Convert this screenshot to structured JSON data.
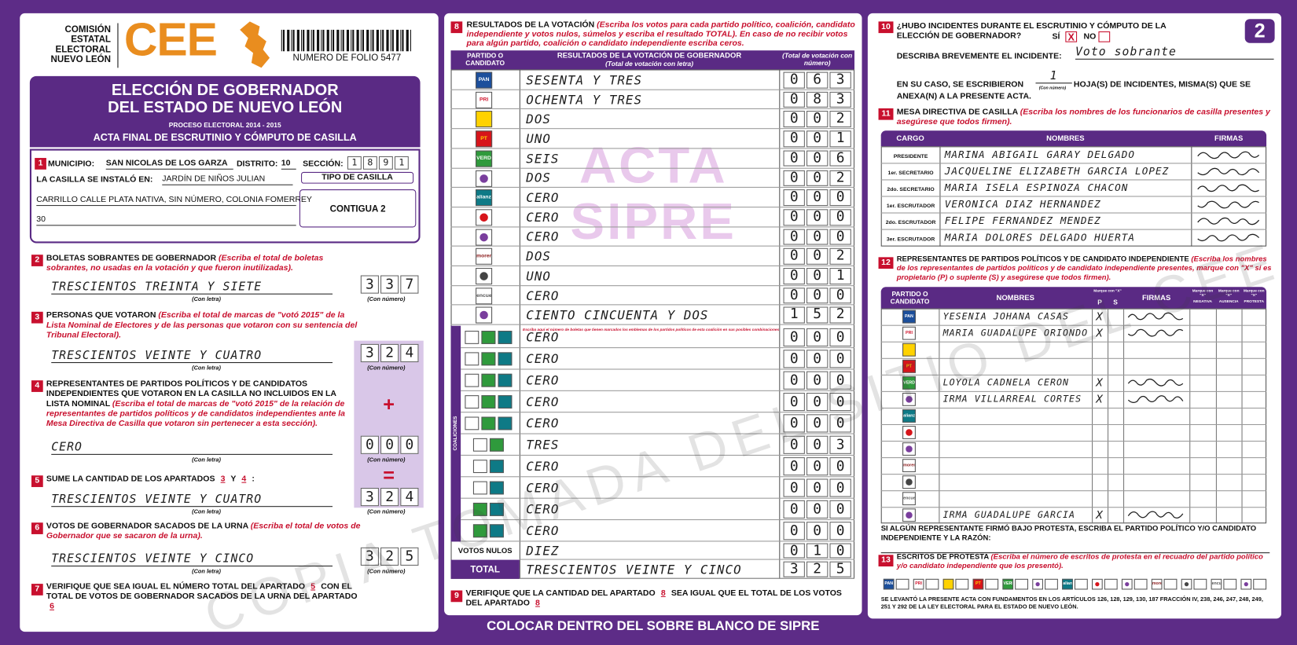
{
  "header": {
    "org_lines": [
      "COMISIÓN",
      "ESTATAL",
      "ELECTORAL",
      "NUEVO LEÓN"
    ],
    "logo": "CEE",
    "folio": "NUMERO DE FOLIO 5477",
    "sheet": "2"
  },
  "title": {
    "lines": [
      "ELECCIÓN DE GOBERNADOR",
      "DEL ESTADO DE NUEVO LEÓN"
    ],
    "process": "PROCESO ELECTORAL 2014 - 2015",
    "act": "ACTA FINAL DE ESCRUTINIO Y CÓMPUTO DE CASILLA"
  },
  "parties": [
    "PAN",
    "PRI",
    null,
    "PT",
    "VERDE",
    null,
    "alianza",
    null,
    null,
    "morena",
    null,
    "encuentro",
    null
  ],
  "captions": {
    "letter": "(Con letra)",
    "number": "(Con número)"
  },
  "s1": {
    "number": "1",
    "municipio_label": "MUNICIPIO:",
    "municipio": "SAN NICOLAS DE LOS GARZA",
    "distrito_label": "DISTRITO:",
    "distrito": "10",
    "seccion_label": "SECCIÓN:",
    "seccion": [
      "1",
      "8",
      "9",
      "1"
    ],
    "location_label": "LA CASILLA SE INSTALÓ EN:",
    "location": [
      "JARDÍN DE NIÑOS JULIAN",
      "CARRILLO CALLE PLATA NATIVA, SIN NÚMERO, COLONIA FOMERREY",
      "30"
    ],
    "tipo_label": "TIPO DE CASILLA",
    "tipo": "CONTIGUA 2"
  },
  "s2": {
    "number": "2",
    "title": "BOLETAS SOBRANTES DE GOBERNADOR",
    "instruction": "(Escriba el total de boletas sobrantes, no usadas en la votación y que fueron inutilizadas).",
    "letters": "TRESCIENTOS TREINTA Y SIETE",
    "digits": [
      "3",
      "3",
      "7"
    ]
  },
  "s3": {
    "number": "3",
    "title": "PERSONAS QUE VOTARON",
    "instruction": "(Escriba el total de marcas de \"votó 2015\" de la Lista Nominal de Electores y de las personas que votaron con su sentencia del Tribunal Electoral).",
    "letters": "TRESCIENTOS VEINTE Y CUATRO",
    "digits": [
      "3",
      "2",
      "4"
    ]
  },
  "s4": {
    "number": "4",
    "title": "REPRESENTANTES DE PARTIDOS POLÍTICOS Y DE CANDIDATOS INDEPENDIENTES QUE VOTARON EN LA CASILLA NO INCLUIDOS EN LA LISTA NOMINAL",
    "instruction": "(Escriba el total de marcas de \"votó 2015\" de la relación de representantes de partidos políticos y de candidatos independientes ante la Mesa Directiva de Casilla que votaron sin pertenecer a esta sección).",
    "letters": "CERO",
    "digits": [
      "0",
      "0",
      "0"
    ],
    "plus": "+"
  },
  "s5": {
    "number": "5",
    "parts": [
      "SUME LA CANTIDAD DE LOS APARTADOS",
      "3",
      "Y",
      "4",
      ":"
    ],
    "letters": "TRESCIENTOS VEINTE Y CUATRO",
    "digits": [
      "3",
      "2",
      "4"
    ],
    "equals": "="
  },
  "s6": {
    "number": "6",
    "title": "VOTOS DE GOBERNADOR SACADOS DE LA URNA",
    "instruction": "(Escriba el total de votos de Gobernador que se sacaron de la urna).",
    "letters": "TRESCIENTOS VEINTE Y CINCO",
    "digits": [
      "3",
      "2",
      "5"
    ]
  },
  "s7": {
    "number": "7",
    "parts": [
      "VERIFIQUE QUE SEA IGUAL EL NÚMERO TOTAL DEL APARTADO",
      "5",
      "CON EL TOTAL DE VOTOS DE GOBERNADOR SACADOS DE LA URNA DEL APARTADO",
      "6"
    ]
  },
  "s8": {
    "number": "8",
    "title": "RESULTADOS DE LA VOTACIÓN",
    "instruction": "(Escriba los votos para cada partido político, coalición, candidato independiente y votos nulos, súmelos y escriba el resultado TOTAL).",
    "instruction2": "En caso de no recibir votos para algún partido, coalición o candidato independiente escriba ceros.",
    "headers": {
      "party": "PARTIDO O CANDIDATO",
      "letters": "RESULTADOS DE LA VOTACIÓN DE GOBERNADOR",
      "letters_note": "(Total de votación con letra)",
      "numbers": "(Total de votación con número)"
    },
    "watermark": [
      "ACTA",
      "SIPRE"
    ],
    "rows": [
      {
        "letters": "SESENTA Y TRES",
        "digits": [
          "0",
          "6",
          "3"
        ]
      },
      {
        "letters": "OCHENTA Y TRES",
        "digits": [
          "0",
          "8",
          "3"
        ]
      },
      {
        "letters": "DOS",
        "digits": [
          "0",
          "0",
          "2"
        ]
      },
      {
        "letters": "UNO",
        "digits": [
          "0",
          "0",
          "1"
        ]
      },
      {
        "letters": "SEIS",
        "digits": [
          "0",
          "0",
          "6"
        ]
      },
      {
        "letters": "DOS",
        "digits": [
          "0",
          "0",
          "2"
        ]
      },
      {
        "letters": "CERO",
        "digits": [
          "0",
          "0",
          "0"
        ]
      },
      {
        "letters": "CERO",
        "digits": [
          "0",
          "0",
          "0"
        ]
      },
      {
        "letters": "CERO",
        "digits": [
          "0",
          "0",
          "0"
        ]
      },
      {
        "letters": "DOS",
        "digits": [
          "0",
          "0",
          "2"
        ]
      },
      {
        "letters": "UNO",
        "digits": [
          "0",
          "0",
          "1"
        ]
      },
      {
        "letters": "CERO",
        "digits": [
          "0",
          "0",
          "0"
        ]
      },
      {
        "letters": "CIENTO CINCUENTA Y DOS",
        "digits": [
          "1",
          "5",
          "2"
        ]
      }
    ],
    "coalition_label": "COALICIONES",
    "coalition_note": "Escriba aquí el número de boletas que tienen marcados los emblemas de los partidos políticos de esta coalición en sus posibles combinaciones",
    "coalitions": [
      {
        "letters": "CERO",
        "digits": [
          "0",
          "0",
          "0"
        ]
      },
      {
        "letters": "CERO",
        "digits": [
          "0",
          "0",
          "0"
        ]
      },
      {
        "letters": "CERO",
        "digits": [
          "0",
          "0",
          "0"
        ]
      },
      {
        "letters": "CERO",
        "digits": [
          "0",
          "0",
          "0"
        ]
      },
      {
        "letters": "CERO",
        "digits": [
          "0",
          "0",
          "0"
        ]
      },
      {
        "letters": "TRES",
        "digits": [
          "0",
          "0",
          "3"
        ]
      },
      {
        "letters": "CERO",
        "digits": [
          "0",
          "0",
          "0"
        ]
      },
      {
        "letters": "CERO",
        "digits": [
          "0",
          "0",
          "0"
        ]
      },
      {
        "letters": "CERO",
        "digits": [
          "0",
          "0",
          "0"
        ]
      },
      {
        "letters": "CERO",
        "digits": [
          "0",
          "0",
          "0"
        ]
      }
    ],
    "null_label": "VOTOS NULOS",
    "null": {
      "letters": "DIEZ",
      "digits": [
        "0",
        "1",
        "0"
      ]
    },
    "total_label": "TOTAL",
    "total": {
      "letters": "TRESCIENTOS VEINTE Y CINCO",
      "digits": [
        "3",
        "2",
        "5"
      ]
    }
  },
  "s9": {
    "number": "9",
    "parts": [
      "VERIFIQUE QUE LA CANTIDAD DEL APARTADO",
      "8",
      "SEA IGUAL QUE EL TOTAL DE LOS VOTOS DEL APARTADO",
      "8"
    ]
  },
  "footer_band": "COLOCAR DENTRO DEL SOBRE BLANCO DE SIPRE",
  "s10": {
    "number": "10",
    "question": "¿HUBO INCIDENTES DURANTE EL ESCRUTINIO Y CÓMPUTO DE LA ELECCIÓN DE GOBERNADOR?",
    "yes": "SÍ",
    "yes_mark": "X",
    "no": "NO",
    "describe_label": "DESCRIBA BREVEMENTE EL INCIDENTE:",
    "describe": "Voto sobrante",
    "sheets_label": "EN SU CASO, SE ESCRIBIERON",
    "sheets": "1",
    "sheets_caption": "(Con número)",
    "sheets_text": [
      "HOJA(S) DE INCIDENTES, MISMA(S) QUE SE",
      "ANEXA(N) A LA PRESENTE ACTA."
    ]
  },
  "s11": {
    "number": "11",
    "title": "MESA DIRECTIVA DE CASILLA",
    "instruction": "(Escriba los nombres de los funcionarios de casilla presentes y asegúrese que todos firmen).",
    "headers": [
      "CARGO",
      "NOMBRES",
      "FIRMAS"
    ],
    "rows": [
      {
        "role": "PRESIDENTE",
        "name": "MARINA ABIGAIL GARAY DELGADO"
      },
      {
        "role": "1er. SECRETARIO",
        "name": "JACQUELINE ELIZABETH GARCIA LOPEZ"
      },
      {
        "role": "2do. SECRETARIO",
        "name": "MARIA ISELA ESPINOZA CHACON"
      },
      {
        "role": "1er. ESCRUTADOR",
        "name": "VERONICA DIAZ HERNANDEZ"
      },
      {
        "role": "2do. ESCRUTADOR",
        "name": "FELIPE FERNANDEZ MENDEZ"
      },
      {
        "role": "3er. ESCRUTADOR",
        "name": "MARIA DOLORES DELGADO HUERTA"
      }
    ]
  },
  "s12": {
    "number": "12",
    "title": "REPRESENTANTES DE PARTIDOS POLÍTICOS Y DE CANDIDATO INDEPENDIENTE",
    "instruction": "(Escriba los nombres de los representantes de partidos políticos y de candidato independiente presentes, marque con \"X\" si es propietario (P) o suplente (S) y asegúrese que todos firmen).",
    "headers": {
      "party": "PARTIDO O CANDIDATO",
      "names": "NOMBRES",
      "mark": "Marque con \"X\"",
      "p": "P",
      "s": "S",
      "firmas": "FIRMAS",
      "extra": [
        "NEGATIVA",
        "AUSENCIA",
        "PROTESTA"
      ]
    },
    "rows": [
      {
        "name": "YESENIA JOHANA CASAS",
        "p": "X"
      },
      {
        "name": "MARIA GUADALUPE ORIONDO",
        "p": "X"
      },
      null,
      null,
      {
        "name": "LOYOLA CADNELA CERON",
        "p": "X"
      },
      {
        "name": "IRMA VILLARREAL CORTES",
        "p": "X"
      },
      null,
      null,
      null,
      null,
      null,
      null,
      {
        "name": "IRMA GUADALUPE GARCIA",
        "p": "X"
      }
    ],
    "protest_note": "SI ALGÚN REPRESENTANTE FIRMÓ BAJO PROTESTA, ESCRIBA EL PARTIDO POLÍTICO Y/O CANDIDATO INDEPENDIENTE Y LA RAZÓN:"
  },
  "s13": {
    "number": "13",
    "title": "ESCRITOS DE PROTESTA",
    "instruction": "(Escriba el número de escritos de protesta en el recuadro del partido político y/o candidato independiente que los presentó)."
  },
  "legal": "SE LEVANTÓ LA PRESENTE ACTA CON FUNDAMENTOS EN LOS ARTÍCULOS 126, 128, 129, 130, 187 FRACCIÓN IV, 238, 246, 247, 248, 249, 251 Y 292 DE LA LEY ELECTORAL PARA EL ESTADO DE NUEVO LEÓN.",
  "watermark": "COPIA TOMADA DEL SITIO DEL CEE"
}
